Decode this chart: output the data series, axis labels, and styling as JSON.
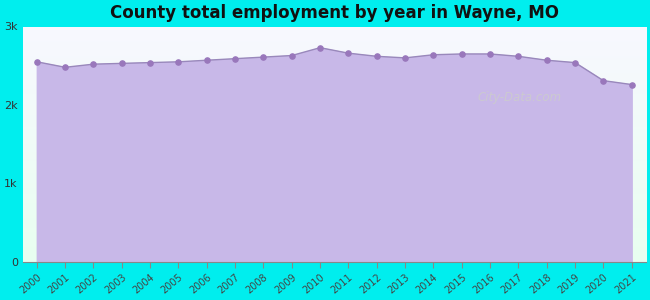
{
  "title": "County total employment by year in Wayne, MO",
  "years": [
    2000,
    2001,
    2002,
    2003,
    2004,
    2005,
    2006,
    2007,
    2008,
    2009,
    2010,
    2011,
    2012,
    2013,
    2014,
    2015,
    2016,
    2017,
    2018,
    2019,
    2020,
    2021
  ],
  "values": [
    2550,
    2480,
    2520,
    2530,
    2540,
    2550,
    2570,
    2590,
    2610,
    2630,
    2730,
    2660,
    2620,
    2600,
    2640,
    2650,
    2650,
    2620,
    2570,
    2540,
    2310,
    2260
  ],
  "background_color": "#00EEEE",
  "plot_bg_top": "#eefff0",
  "plot_bg_bottom": "#c8b8e8",
  "fill_color": "#c8b8e8",
  "line_color": "#9988bb",
  "dot_color": "#9977bb",
  "title_color": "#111111",
  "ytick_labels": [
    "0",
    "1k",
    "2k",
    "3k"
  ],
  "ytick_values": [
    0,
    1000,
    2000,
    3000
  ],
  "ylim": [
    0,
    3000
  ],
  "watermark": "City-Data.com"
}
